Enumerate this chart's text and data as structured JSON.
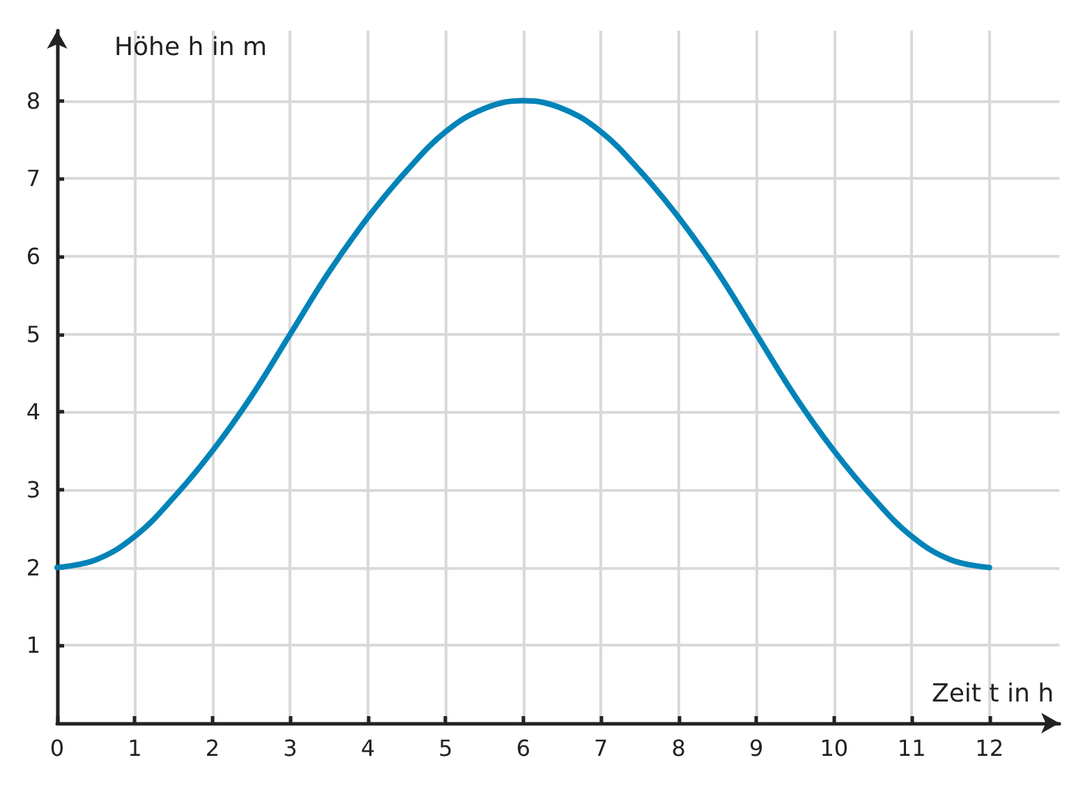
{
  "chart_data": {
    "type": "line",
    "xlabel": "Zeit t in h",
    "ylabel": "Höhe h in m",
    "x": [
      0,
      0.5,
      1,
      1.5,
      2,
      2.5,
      3,
      3.5,
      4,
      4.5,
      5,
      5.5,
      6,
      6.5,
      7,
      7.5,
      8,
      8.5,
      9,
      9.5,
      10,
      10.5,
      11,
      11.5,
      12
    ],
    "series": [
      {
        "color": "#0083b8",
        "values": [
          2,
          2.1,
          2.4,
          2.9,
          3.5,
          4.2,
          5,
          5.8,
          6.5,
          7.1,
          7.6,
          7.9,
          8,
          7.9,
          7.6,
          7.1,
          6.5,
          5.8,
          5,
          4.2,
          3.5,
          2.9,
          2.4,
          2.1,
          2
        ]
      }
    ],
    "xlim": [
      0,
      12.9
    ],
    "ylim": [
      0,
      8.9
    ],
    "xticks": [
      0,
      1,
      2,
      3,
      4,
      5,
      6,
      7,
      8,
      9,
      10,
      11,
      12
    ],
    "yticks": [
      1,
      2,
      3,
      4,
      5,
      6,
      7,
      8
    ],
    "grid": true,
    "marker": "none",
    "line_style": "solid"
  }
}
